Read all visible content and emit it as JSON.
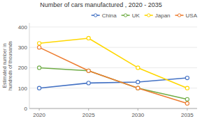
{
  "chart_data": {
    "type": "line",
    "title": "Number of cars manufactured , 2020 - 2035",
    "ylabel": "Estimated number in\nhundreds of thousands",
    "x": [
      2020,
      2025,
      2030,
      2035
    ],
    "series": [
      {
        "name": "China",
        "color": "#4472C4",
        "values": [
          100,
          125,
          130,
          150
        ]
      },
      {
        "name": "UK",
        "color": "#70AD47",
        "values": [
          200,
          185,
          100,
          45
        ]
      },
      {
        "name": "Japan",
        "color": "#FFD700",
        "values": [
          320,
          345,
          200,
          100
        ]
      },
      {
        "name": "USA",
        "color": "#ED7D31",
        "values": [
          300,
          185,
          100,
          25
        ]
      }
    ],
    "xlim": [
      2019,
      2036
    ],
    "xticks": [
      2020,
      2025,
      2030,
      2035
    ],
    "ylim": [
      0,
      420
    ],
    "yticks": [
      0,
      100,
      200,
      300,
      400
    ],
    "grid": true,
    "legend": "top",
    "marker": "circle"
  }
}
